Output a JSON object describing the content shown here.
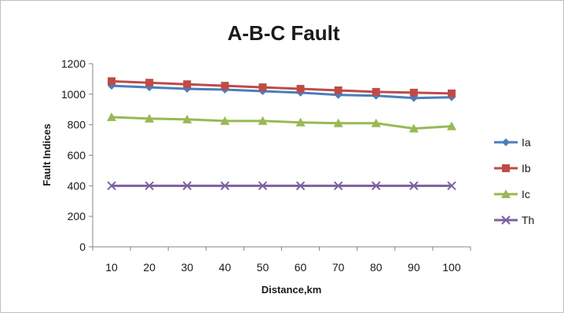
{
  "chart_data": {
    "type": "line",
    "title": "A-B-C  Fault",
    "xlabel": "Distance,km",
    "ylabel": "Fault Indices",
    "x": [
      10,
      20,
      30,
      40,
      50,
      60,
      70,
      80,
      90,
      100
    ],
    "ylim": [
      0,
      1200
    ],
    "yticks": [
      0,
      200,
      400,
      600,
      800,
      1000,
      1200
    ],
    "grid": false,
    "legend_position": "right",
    "series": [
      {
        "name": "Ia",
        "color": "#4a7ebb",
        "marker": "diamond",
        "values": [
          1055,
          1045,
          1035,
          1030,
          1020,
          1010,
          995,
          990,
          975,
          980
        ]
      },
      {
        "name": "Ib",
        "color": "#be4b48",
        "marker": "square",
        "values": [
          1085,
          1075,
          1065,
          1055,
          1045,
          1035,
          1025,
          1015,
          1010,
          1005
        ]
      },
      {
        "name": "Ic",
        "color": "#98b954",
        "marker": "triangle",
        "values": [
          850,
          840,
          835,
          825,
          825,
          815,
          810,
          810,
          775,
          790
        ]
      },
      {
        "name": "Th",
        "color": "#7d60a0",
        "marker": "x",
        "values": [
          400,
          400,
          400,
          400,
          400,
          400,
          400,
          400,
          400,
          400
        ]
      }
    ]
  }
}
